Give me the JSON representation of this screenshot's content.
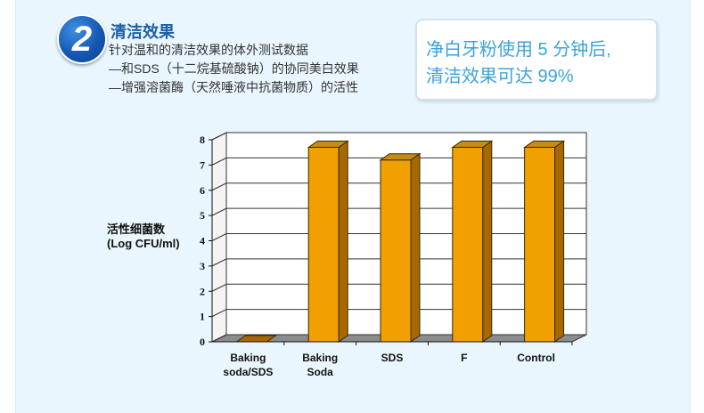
{
  "header": {
    "badge_number": "2",
    "title": "清洁效果",
    "lines": [
      "针对温和的清洁效果的体外测试数据",
      "—和SDS（十二烷基硫酸钠）的协同美白效果",
      "—增强溶菌酶（天然唾液中抗菌物质）的活性"
    ]
  },
  "callout": {
    "line1": "净白牙粉使用 5 分钟后,",
    "line2": "清洁效果可达 99%"
  },
  "chart_data": {
    "type": "bar",
    "ylabel_lines": [
      "活性细菌数",
      "(Log CFU/ml)"
    ],
    "categories": [
      [
        "Baking",
        "soda/SDS"
      ],
      [
        "Baking",
        "Soda"
      ],
      [
        "SDS"
      ],
      [
        "F"
      ],
      [
        "Control"
      ]
    ],
    "values": [
      0,
      7.7,
      7.2,
      7.7,
      7.7
    ],
    "ylim": [
      0,
      8
    ],
    "yticks": [
      0,
      1,
      2,
      3,
      4,
      5,
      6,
      7,
      8
    ],
    "grid": true,
    "bar_color": "#f0a000",
    "bar_side_color": "#a86800",
    "bar_top_color": "#c88a10"
  }
}
